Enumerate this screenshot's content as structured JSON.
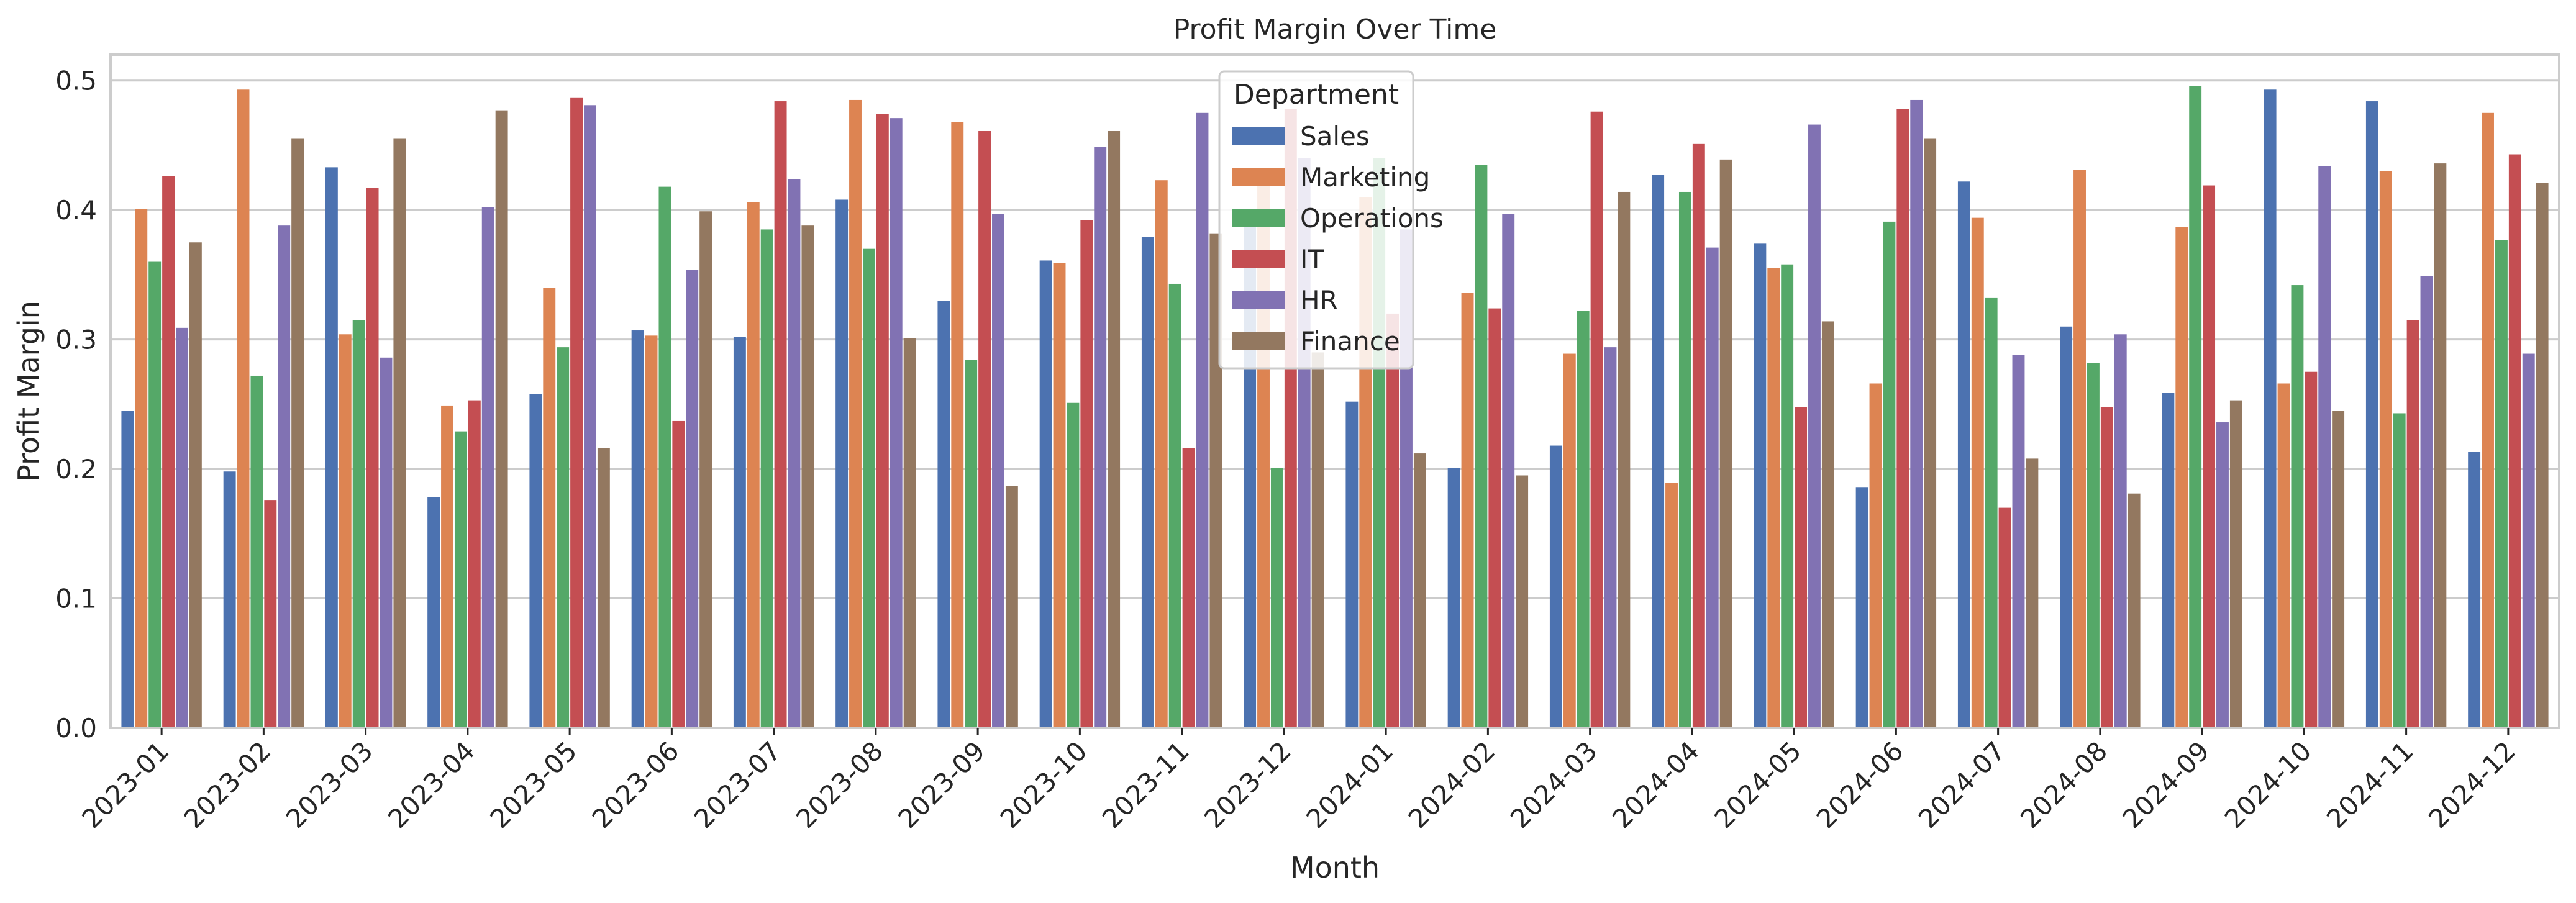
{
  "chart_data": {
    "type": "bar",
    "title": "Profit Margin Over Time",
    "xlabel": "Month",
    "ylabel": "Profit Margin",
    "ylim": [
      0,
      0.52
    ],
    "yticks": [
      0.0,
      0.1,
      0.2,
      0.3,
      0.4,
      0.5
    ],
    "ytick_labels": [
      "0.0",
      "0.1",
      "0.2",
      "0.3",
      "0.4",
      "0.5"
    ],
    "grid": "horizontal",
    "legend": {
      "title": "Department",
      "placement": "top-center"
    },
    "categories": [
      "2023-01",
      "2023-02",
      "2023-03",
      "2023-04",
      "2023-05",
      "2023-06",
      "2023-07",
      "2023-08",
      "2023-09",
      "2023-10",
      "2023-11",
      "2023-12",
      "2024-01",
      "2024-02",
      "2024-03",
      "2024-04",
      "2024-05",
      "2024-06",
      "2024-07",
      "2024-08",
      "2024-09",
      "2024-10",
      "2024-11",
      "2024-12"
    ],
    "series": [
      {
        "name": "Sales",
        "color": "#4c72b0",
        "values": [
          0.245,
          0.198,
          0.433,
          0.178,
          0.258,
          0.307,
          0.302,
          0.408,
          0.33,
          0.361,
          0.379,
          0.39,
          0.252,
          0.201,
          0.218,
          0.427,
          0.374,
          0.186,
          0.422,
          0.31,
          0.259,
          0.493,
          0.484,
          0.213
        ]
      },
      {
        "name": "Marketing",
        "color": "#dd8452",
        "values": [
          0.401,
          0.493,
          0.304,
          0.249,
          0.34,
          0.303,
          0.406,
          0.485,
          0.468,
          0.359,
          0.423,
          0.42,
          0.41,
          0.336,
          0.289,
          0.189,
          0.355,
          0.266,
          0.394,
          0.431,
          0.387,
          0.266,
          0.43,
          0.475
        ]
      },
      {
        "name": "Operations",
        "color": "#55a868",
        "values": [
          0.36,
          0.272,
          0.315,
          0.229,
          0.294,
          0.418,
          0.385,
          0.37,
          0.284,
          0.251,
          0.343,
          0.201,
          0.44,
          0.435,
          0.322,
          0.414,
          0.358,
          0.391,
          0.332,
          0.282,
          0.496,
          0.342,
          0.243,
          0.377
        ]
      },
      {
        "name": "IT",
        "color": "#c44e52",
        "values": [
          0.426,
          0.176,
          0.417,
          0.253,
          0.487,
          0.237,
          0.484,
          0.474,
          0.461,
          0.392,
          0.216,
          0.478,
          0.32,
          0.324,
          0.476,
          0.451,
          0.248,
          0.478,
          0.17,
          0.248,
          0.419,
          0.275,
          0.315,
          0.443
        ]
      },
      {
        "name": "HR",
        "color": "#8172b3",
        "values": [
          0.309,
          0.388,
          0.286,
          0.402,
          0.481,
          0.354,
          0.424,
          0.471,
          0.397,
          0.449,
          0.475,
          0.44,
          0.385,
          0.397,
          0.294,
          0.371,
          0.466,
          0.485,
          0.288,
          0.304,
          0.236,
          0.434,
          0.349,
          0.289
        ]
      },
      {
        "name": "Finance",
        "color": "#937860",
        "values": [
          0.375,
          0.455,
          0.455,
          0.477,
          0.216,
          0.399,
          0.388,
          0.301,
          0.187,
          0.461,
          0.382,
          0.29,
          0.212,
          0.195,
          0.414,
          0.439,
          0.314,
          0.455,
          0.208,
          0.181,
          0.253,
          0.245,
          0.436,
          0.421
        ]
      }
    ]
  }
}
